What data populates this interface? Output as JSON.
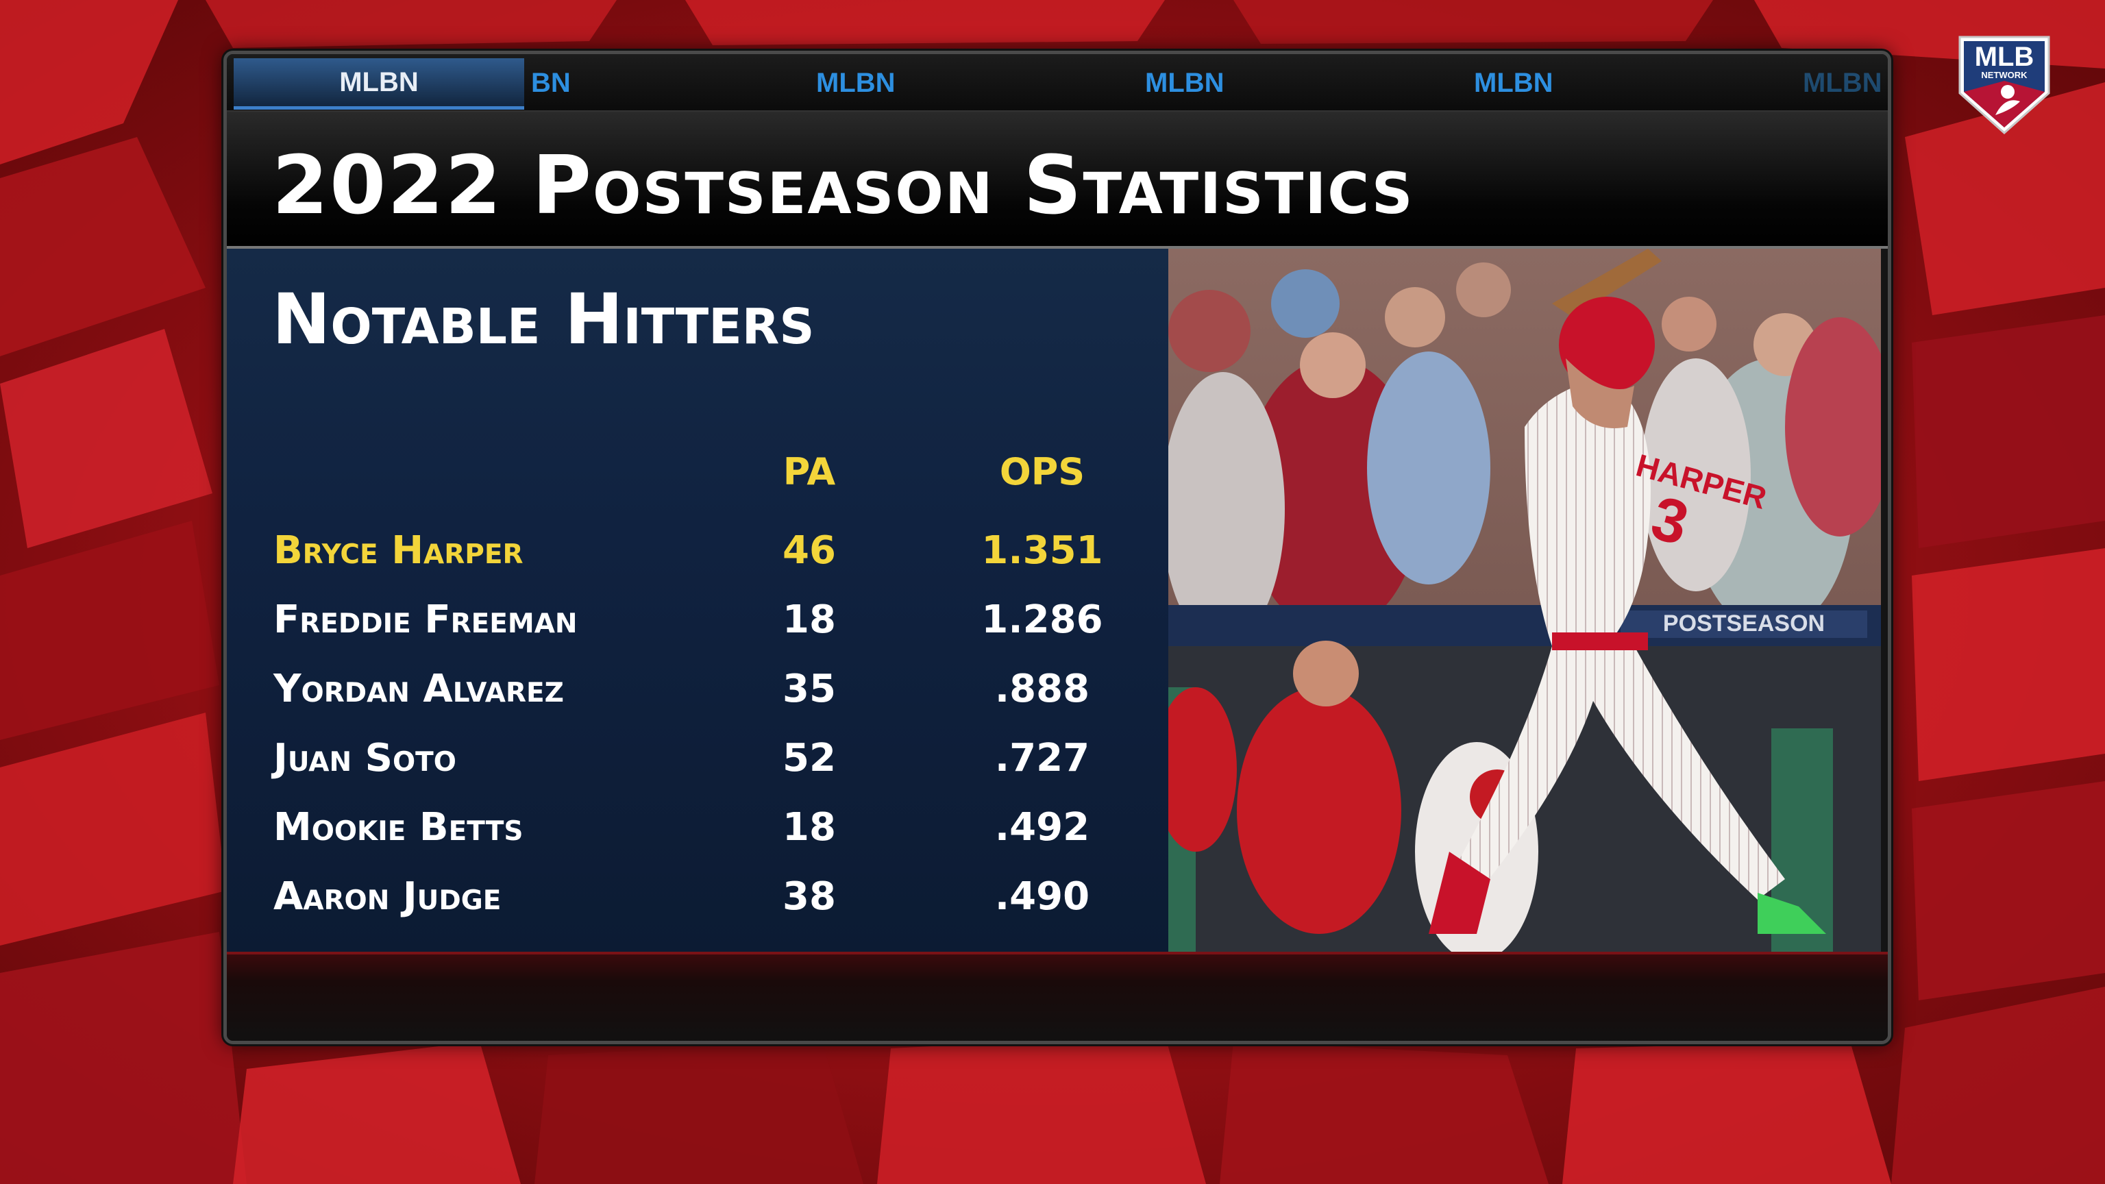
{
  "ticker": {
    "active_label": "MLBN",
    "items": [
      "BN",
      "MLBN",
      "MLBN",
      "MLBN",
      "MLBN"
    ]
  },
  "logo": {
    "text": "MLB",
    "subtext": "NETWORK"
  },
  "title": "2022 Postseason Statistics",
  "subtitle": "Notable Hitters",
  "table": {
    "columns": [
      "PA",
      "OPS"
    ],
    "rows": [
      {
        "name": "Bryce Harper",
        "pa": "46",
        "ops": "1.351",
        "highlight": true
      },
      {
        "name": "Freddie Freeman",
        "pa": "18",
        "ops": "1.286"
      },
      {
        "name": "Yordan Alvarez",
        "pa": "35",
        "ops": ".888"
      },
      {
        "name": "Juan Soto",
        "pa": "52",
        "ops": ".727"
      },
      {
        "name": "Mookie Betts",
        "pa": "18",
        "ops": ".492"
      },
      {
        "name": "Aaron Judge",
        "pa": "38",
        "ops": ".490"
      }
    ]
  },
  "photo": {
    "jersey_text": "HARPER",
    "jersey_number": "3",
    "banner_text": "POSTSEASON"
  },
  "colors": {
    "highlight": "#f3d53a",
    "panel_blue": "#102240",
    "background_red": "#b8161b",
    "ticker_blue": "#2d8fe0"
  }
}
